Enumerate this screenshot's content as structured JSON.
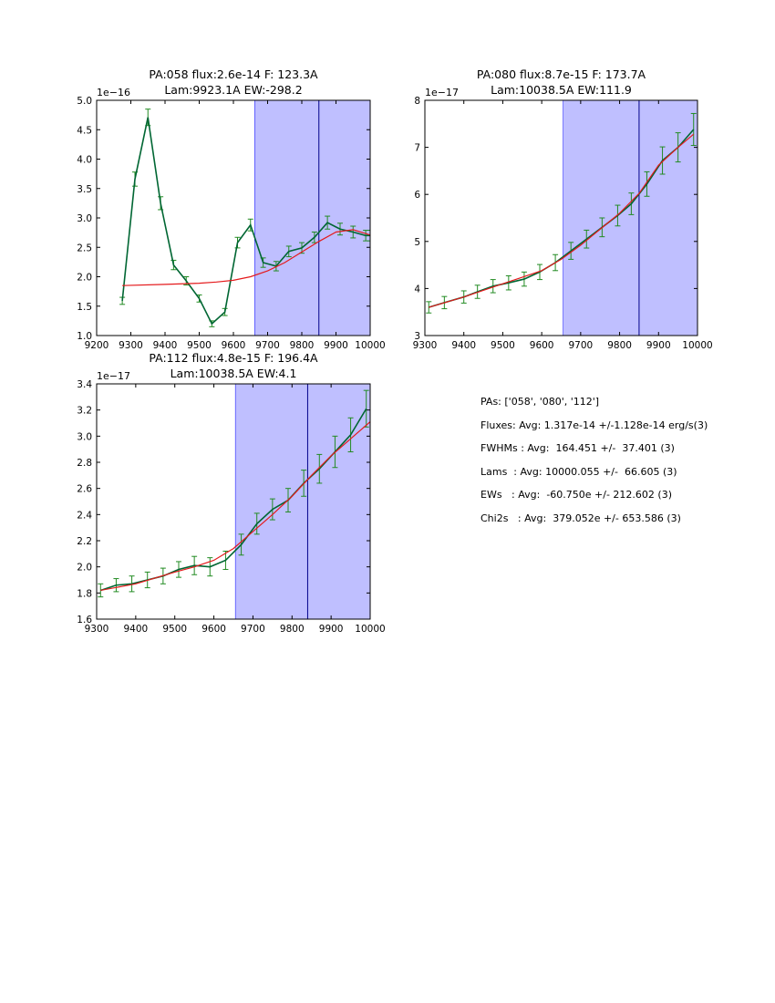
{
  "colors": {
    "background": "#ffffff",
    "highlight_fill": "#bfbfff",
    "highlight_edge": "#0000ff",
    "center_line": "#00008b",
    "data_line": "#006633",
    "error_bars": "#228b22",
    "fit_line": "#e41a1c",
    "axes": "#000000"
  },
  "chart_data": [
    {
      "type": "line",
      "title_line1": "PA:058 flux:2.6e-14 F: 123.3A",
      "title_line2": "Lam:9923.1A EW:-298.2",
      "exponent_label": "1e−16",
      "xlim": [
        9200,
        10000
      ],
      "ylim": [
        1.0,
        5.0
      ],
      "xticks": [
        9200,
        9300,
        9400,
        9500,
        9600,
        9700,
        9800,
        9900,
        10000
      ],
      "yticks": [
        1.0,
        1.5,
        2.0,
        2.5,
        3.0,
        3.5,
        4.0,
        4.5,
        5.0
      ],
      "ytick_labels": [
        "1.0",
        "1.5",
        "2.0",
        "2.5",
        "3.0",
        "3.5",
        "4.0",
        "4.5",
        "5.0"
      ],
      "highlight_span": [
        9662,
        10000
      ],
      "center_line": 9850,
      "series": [
        {
          "name": "data",
          "x": [
            9275,
            9312,
            9350,
            9387,
            9425,
            9462,
            9500,
            9537,
            9575,
            9612,
            9650,
            9687,
            9725,
            9762,
            9800,
            9837,
            9875,
            9912,
            9950,
            9987,
            10000
          ],
          "y": [
            1.59,
            3.66,
            4.71,
            3.25,
            2.2,
            1.93,
            1.63,
            1.2,
            1.4,
            2.58,
            2.88,
            2.24,
            2.18,
            2.43,
            2.49,
            2.67,
            2.92,
            2.81,
            2.76,
            2.7,
            2.7
          ],
          "err": [
            0.06,
            0.12,
            0.14,
            0.11,
            0.08,
            0.07,
            0.06,
            0.05,
            0.06,
            0.09,
            0.1,
            0.08,
            0.08,
            0.09,
            0.09,
            0.09,
            0.11,
            0.1,
            0.1,
            0.09,
            0.09
          ]
        },
        {
          "name": "fit",
          "x": [
            9275,
            9400,
            9500,
            9550,
            9600,
            9650,
            9700,
            9750,
            9800,
            9850,
            9900,
            9950,
            10000
          ],
          "y": [
            1.85,
            1.87,
            1.89,
            1.91,
            1.94,
            2.0,
            2.1,
            2.24,
            2.42,
            2.6,
            2.76,
            2.8,
            2.71
          ]
        }
      ]
    },
    {
      "type": "line",
      "title_line1": "PA:080 flux:8.7e-15 F: 173.7A",
      "title_line2": "Lam:10038.5A EW:111.9",
      "exponent_label": "1e−17",
      "xlim": [
        9300,
        10000
      ],
      "ylim": [
        3,
        8
      ],
      "xticks": [
        9300,
        9400,
        9500,
        9600,
        9700,
        9800,
        9900,
        10000
      ],
      "yticks": [
        3,
        4,
        5,
        6,
        7,
        8
      ],
      "ytick_labels": [
        "3",
        "4",
        "5",
        "6",
        "7",
        "8"
      ],
      "highlight_span": [
        9655,
        10000
      ],
      "center_line": 9850,
      "series": [
        {
          "name": "data",
          "x": [
            9310,
            9350,
            9400,
            9435,
            9475,
            9515,
            9555,
            9595,
            9635,
            9675,
            9715,
            9755,
            9795,
            9830,
            9870,
            9910,
            9950,
            9990
          ],
          "y": [
            3.6,
            3.7,
            3.82,
            3.93,
            4.05,
            4.12,
            4.2,
            4.35,
            4.55,
            4.8,
            5.05,
            5.3,
            5.55,
            5.8,
            6.22,
            6.72,
            7.0,
            7.38
          ],
          "err": [
            0.12,
            0.13,
            0.13,
            0.14,
            0.14,
            0.15,
            0.15,
            0.16,
            0.17,
            0.18,
            0.19,
            0.2,
            0.22,
            0.23,
            0.26,
            0.29,
            0.31,
            0.34
          ]
        },
        {
          "name": "fit",
          "x": [
            9310,
            9400,
            9500,
            9550,
            9600,
            9650,
            9700,
            9750,
            9800,
            9850,
            9900,
            9950,
            9990
          ],
          "y": [
            3.6,
            3.82,
            4.1,
            4.24,
            4.38,
            4.62,
            4.92,
            5.26,
            5.6,
            6.02,
            6.62,
            7.0,
            7.28
          ]
        }
      ]
    },
    {
      "type": "line",
      "title_line1": "PA:112 flux:4.8e-15 F: 196.4A",
      "title_line2": "Lam:10038.5A EW:4.1",
      "exponent_label": "1e−17",
      "xlim": [
        9300,
        10000
      ],
      "ylim": [
        1.6,
        3.4
      ],
      "xticks": [
        9300,
        9400,
        9500,
        9600,
        9700,
        9800,
        9900,
        10000
      ],
      "yticks": [
        1.6,
        1.8,
        2.0,
        2.2,
        2.4,
        2.6,
        2.8,
        3.0,
        3.2,
        3.4
      ],
      "ytick_labels": [
        "1.6",
        "1.8",
        "2.0",
        "2.2",
        "2.4",
        "2.6",
        "2.8",
        "3.0",
        "3.2",
        "3.4"
      ],
      "highlight_span": [
        9655,
        10000
      ],
      "center_line": 9840,
      "series": [
        {
          "name": "data",
          "x": [
            9310,
            9350,
            9390,
            9430,
            9470,
            9510,
            9550,
            9590,
            9630,
            9670,
            9710,
            9750,
            9790,
            9830,
            9870,
            9910,
            9950,
            9990
          ],
          "y": [
            1.82,
            1.86,
            1.87,
            1.9,
            1.93,
            1.98,
            2.01,
            2.0,
            2.05,
            2.17,
            2.33,
            2.44,
            2.51,
            2.64,
            2.75,
            2.88,
            3.01,
            3.21
          ],
          "err": [
            0.05,
            0.05,
            0.06,
            0.06,
            0.06,
            0.06,
            0.07,
            0.07,
            0.07,
            0.08,
            0.08,
            0.08,
            0.09,
            0.1,
            0.11,
            0.12,
            0.13,
            0.14
          ]
        },
        {
          "name": "fit",
          "x": [
            9310,
            9400,
            9500,
            9550,
            9600,
            9650,
            9700,
            9750,
            9800,
            9850,
            9900,
            9950,
            10000
          ],
          "y": [
            1.82,
            1.87,
            1.96,
            2.0,
            2.05,
            2.14,
            2.27,
            2.4,
            2.54,
            2.7,
            2.85,
            2.98,
            3.11
          ]
        }
      ]
    }
  ],
  "summary": {
    "pas": "PAs: ['058', '080', '112']",
    "fluxes": "Fluxes: Avg: 1.317e-14 +/-1.128e-14 erg/s(3)",
    "fwhms": "FWHMs : Avg:  164.451 +/-  37.401 (3)",
    "lams": "Lams  : Avg: 10000.055 +/-  66.605 (3)",
    "ews": "EWs   : Avg:  -60.750e +/- 212.602 (3)",
    "chi2s": "Chi2s   : Avg:  379.052e +/- 653.586 (3)"
  }
}
